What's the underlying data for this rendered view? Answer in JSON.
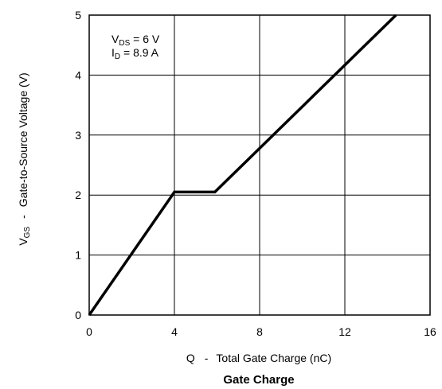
{
  "chart_data": {
    "type": "line",
    "title": "Gate Charge",
    "xlabel": {
      "symbol": "Q",
      "sep": "-",
      "text": "Total Gate Charge (nC)"
    },
    "ylabel": {
      "symbol": "V",
      "sub": "GS",
      "sep": "-",
      "text": "Gate-to-Source Voltage (V)"
    },
    "xlim": [
      0,
      16
    ],
    "ylim": [
      0,
      5
    ],
    "xticks": [
      0,
      4,
      8,
      12,
      16
    ],
    "yticks": [
      0,
      1,
      2,
      3,
      4,
      5
    ],
    "grid": true,
    "annotations": [
      {
        "main": "V",
        "sub": "DS",
        "rest": " = 6 V"
      },
      {
        "main": "I",
        "sub": "D",
        "rest": " = 8.9 A"
      }
    ],
    "series": [
      {
        "x": [
          0,
          4,
          5.9,
          14.4
        ],
        "y": [
          0,
          2.05,
          2.05,
          5
        ]
      }
    ]
  }
}
